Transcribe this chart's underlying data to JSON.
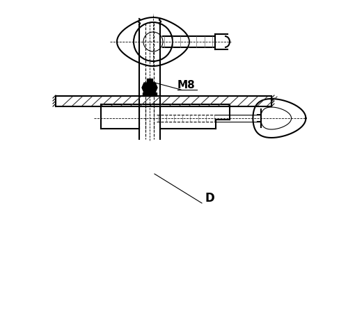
{
  "bg_color": "#ffffff",
  "line_color": "#000000",
  "hatch_color": "#000000",
  "label_D": "D",
  "label_M8": "M8",
  "figsize": [
    5.0,
    4.5
  ],
  "dpi": 100
}
